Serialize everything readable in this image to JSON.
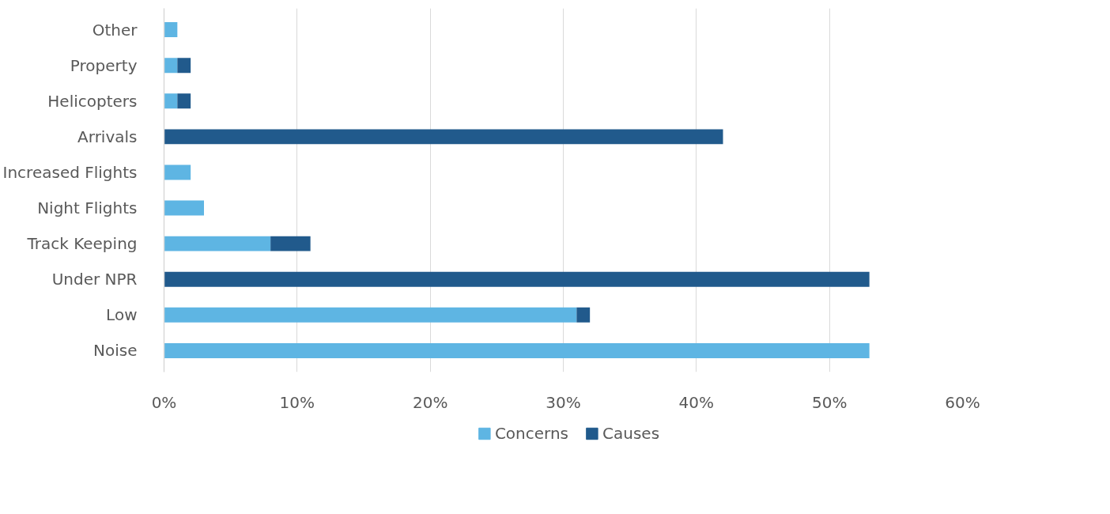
{
  "chart_data": {
    "type": "bar",
    "orientation": "horizontal",
    "stacked": true,
    "categories": [
      "Other",
      "Property",
      "Helicopters",
      "Arrivals",
      "Increased Flights",
      "Night Flights",
      "Track Keeping",
      "Under NPR",
      "Low",
      "Noise"
    ],
    "series": [
      {
        "name": "Concerns",
        "color": "#5eb5e3",
        "values": [
          1,
          1,
          1,
          null,
          2,
          3,
          8,
          null,
          31,
          53
        ]
      },
      {
        "name": "Causes",
        "color": "#215a8c",
        "values": [
          null,
          1,
          1,
          42,
          null,
          null,
          3,
          53,
          1,
          null
        ]
      }
    ],
    "xlim": [
      0,
      60
    ],
    "xticks": [
      {
        "value": 0,
        "label": "0%"
      },
      {
        "value": 10,
        "label": "10%"
      },
      {
        "value": 20,
        "label": "20%"
      },
      {
        "value": 30,
        "label": "30%"
      },
      {
        "value": 40,
        "label": "40%"
      },
      {
        "value": 50,
        "label": "50%"
      },
      {
        "value": 60,
        "label": "60%"
      }
    ],
    "grid": "x",
    "legend": "bottom"
  }
}
